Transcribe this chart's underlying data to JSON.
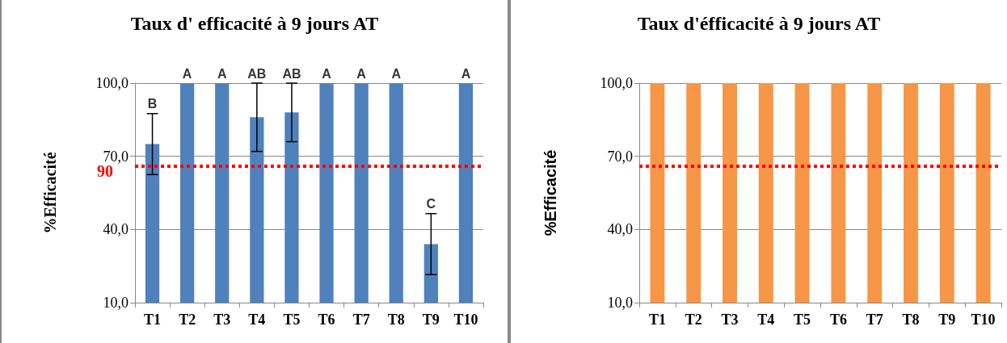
{
  "chart_data": [
    {
      "type": "bar",
      "title": "Taux d' efficacité à 9 jours AT",
      "ylabel": "%Efficacité",
      "categories": [
        "T1",
        "T2",
        "T3",
        "T4",
        "T5",
        "T6",
        "T7",
        "T8",
        "T9",
        "T10"
      ],
      "color": "#4f81bd",
      "values": [
        75,
        100,
        100,
        86,
        88,
        100,
        100,
        100,
        34,
        100
      ],
      "errors": [
        12.5,
        null,
        null,
        14,
        12,
        null,
        null,
        null,
        12.5,
        null
      ],
      "ylim": [
        10,
        100
      ],
      "yticks": [
        {
          "value": 10,
          "label": "10,0"
        },
        {
          "value": 40,
          "label": "40,0"
        },
        {
          "value": 70,
          "label": "70,0"
        },
        {
          "value": 100,
          "label": "100,0"
        }
      ],
      "grid": "y",
      "ref_lines": [
        {
          "axis": "y",
          "value": 66,
          "color": "#ff0000",
          "line_style": "dotted"
        }
      ],
      "annotations": [
        "90",
        {
          "text": "B",
          "x": "T1",
          "y": 87.5
        },
        {
          "text": "A",
          "x": "T2",
          "y": 100
        },
        {
          "text": "A",
          "x": "T3",
          "y": 100
        },
        {
          "text": "AB",
          "x": "T4",
          "y": 100
        },
        {
          "text": "AB",
          "x": "T5",
          "y": 100
        },
        {
          "text": "A",
          "x": "T6",
          "y": 100
        },
        {
          "text": "A",
          "x": "T7",
          "y": 100
        },
        {
          "text": "A",
          "x": "T8",
          "y": 100
        },
        {
          "text": "C",
          "x": "T9",
          "y": 46.5
        },
        {
          "text": "A",
          "x": "T10",
          "y": 100
        }
      ]
    },
    {
      "type": "bar",
      "title": "Taux d'éfficacité à 9 jours AT",
      "ylabel": "%Efficacité",
      "categories": [
        "T1",
        "T2",
        "T3",
        "T4",
        "T5",
        "T6",
        "T7",
        "T8",
        "T9",
        "T10"
      ],
      "color": "#f79646",
      "values": [
        100,
        100,
        100,
        100,
        100,
        100,
        100,
        100,
        100,
        100
      ],
      "ylim": [
        10,
        100
      ],
      "yticks": [
        {
          "value": 10,
          "label": "10,0"
        },
        {
          "value": 40,
          "label": "40,0"
        },
        {
          "value": 70,
          "label": "70,0"
        },
        {
          "value": 100,
          "label": "100,0"
        }
      ],
      "grid": "y",
      "ref_lines": [
        {
          "axis": "y",
          "value": 66,
          "color": "#ff0000",
          "line_style": "dotted"
        }
      ]
    }
  ]
}
